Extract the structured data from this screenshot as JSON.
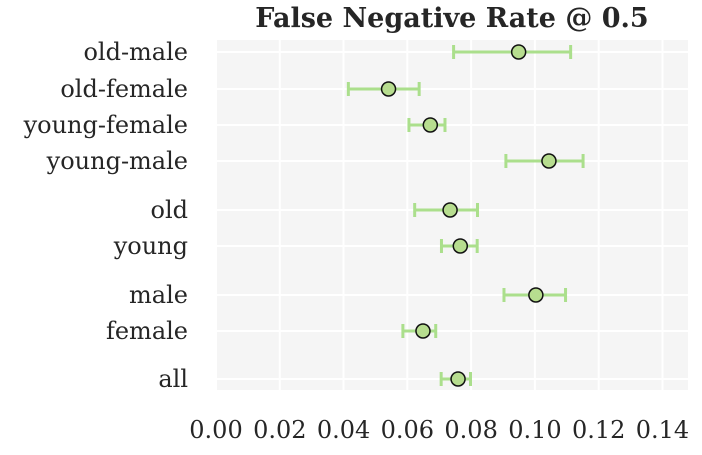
{
  "chart_data": {
    "type": "scatter",
    "title": "False Negative Rate @ 0.5",
    "xlabel": "",
    "ylabel": "",
    "xlim": [
      0.0,
      0.148
    ],
    "xticks": [
      "0.00",
      "0.02",
      "0.04",
      "0.06",
      "0.08",
      "0.10",
      "0.12",
      "0.14"
    ],
    "grid": true,
    "marker_fill": "#b7dd8f",
    "errorbar_color": "#abdf8c",
    "background": "#f5f5f5",
    "points": [
      {
        "label": "old-male",
        "x": 0.0949,
        "low": 0.0745,
        "high": 0.1112
      },
      {
        "label": "old-female",
        "x": 0.0541,
        "low": 0.0415,
        "high": 0.0637
      },
      {
        "label": "young-female",
        "x": 0.0672,
        "low": 0.0605,
        "high": 0.0718
      },
      {
        "label": "young-male",
        "x": 0.1044,
        "low": 0.0909,
        "high": 0.1151
      },
      {
        "label": "old",
        "x": 0.0734,
        "low": 0.0623,
        "high": 0.082
      },
      {
        "label": "young",
        "x": 0.0766,
        "low": 0.0707,
        "high": 0.0819
      },
      {
        "label": "male",
        "x": 0.1003,
        "low": 0.0903,
        "high": 0.1096
      },
      {
        "label": "female",
        "x": 0.0649,
        "low": 0.0586,
        "high": 0.0689
      },
      {
        "label": "all",
        "x": 0.0759,
        "low": 0.0706,
        "high": 0.0798
      }
    ]
  }
}
